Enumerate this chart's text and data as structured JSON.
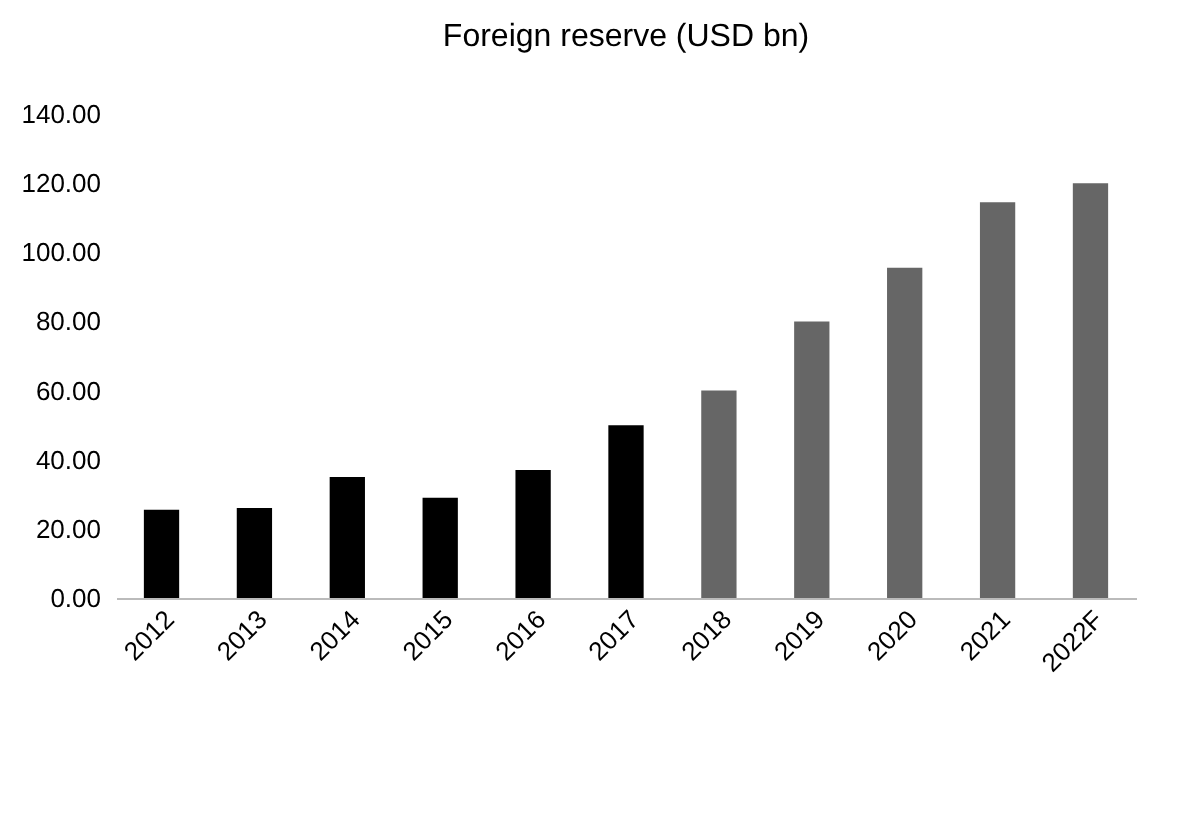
{
  "chart_data": {
    "type": "bar",
    "title": "Foreign reserve (USD bn)",
    "categories": [
      "2012",
      "2013",
      "2014",
      "2015",
      "2016",
      "2017",
      "2018",
      "2019",
      "2020",
      "2021",
      "2022F"
    ],
    "values": [
      25.5,
      26,
      35,
      29,
      37,
      50,
      60,
      80,
      95.5,
      114.5,
      120
    ],
    "colors": [
      "#000000",
      "#000000",
      "#000000",
      "#000000",
      "#000000",
      "#000000",
      "#666666",
      "#666666",
      "#666666",
      "#666666",
      "#666666"
    ],
    "ylim": [
      0,
      140
    ],
    "yticks": [
      {
        "value": 0,
        "label": "0.00"
      },
      {
        "value": 20,
        "label": "20.00"
      },
      {
        "value": 40,
        "label": "40.00"
      },
      {
        "value": 60,
        "label": "60.00"
      },
      {
        "value": 80,
        "label": "80.00"
      },
      {
        "value": 100,
        "label": "100.00"
      },
      {
        "value": 120,
        "label": "120.00"
      },
      {
        "value": 140,
        "label": "140.00"
      }
    ],
    "grid": false
  }
}
